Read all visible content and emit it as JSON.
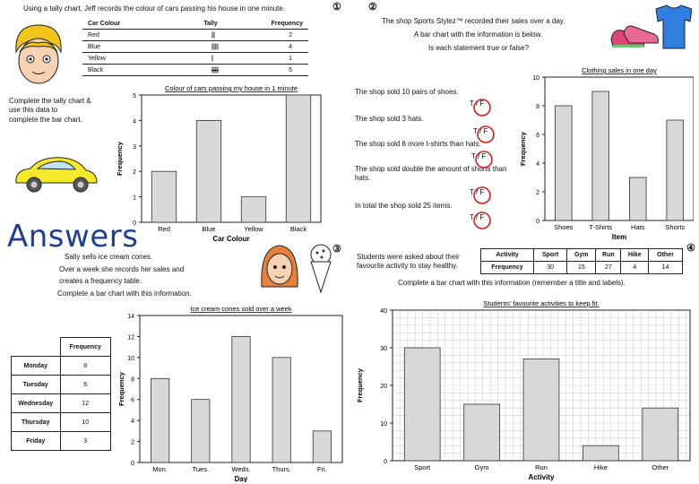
{
  "answers_label": "Answers",
  "q1": {
    "number": "①",
    "intro": "Using a tally chart, Jeff records the colour of cars passing his house in one minute.",
    "instruction_lines": [
      "Complete the tally chart &",
      "use this data to",
      "complete the bar chart."
    ],
    "tally_headers": [
      "Car Colour",
      "Tally",
      "Frequency"
    ],
    "tally_rows": [
      {
        "colour": "Red",
        "tally": "||",
        "freq": "2"
      },
      {
        "colour": "Blue",
        "tally": "||||",
        "freq": "4"
      },
      {
        "colour": "Yellow",
        "tally": "|",
        "freq": "1"
      },
      {
        "colour": "Black",
        "tally": "||||",
        "freq": "5"
      }
    ]
  },
  "q2": {
    "intro_lines": [
      "The shop  Sports Stylez™  recorded their sales over a day.",
      "A bar chart with the information is below.",
      "Is each statement true or false?"
    ],
    "statements": [
      {
        "text": "The shop sold 10 pairs of shoes.",
        "tf": "T / F"
      },
      {
        "text": "The shop sold 3 hats.",
        "tf": "T / F"
      },
      {
        "text": "The shop sold 6 more t-shirts than hats.",
        "tf": "T / F"
      },
      {
        "text": "The shop sold double the amount of shorts than hats.",
        "tf": "T / F"
      },
      {
        "text": "In total the shop sold 25 items.",
        "tf": "T / F"
      }
    ]
  },
  "q3": {
    "number": "③",
    "intro_lines": [
      "Sally sells ice cream cones.",
      "Over a week she records her sales and",
      "creates a frequency table.",
      "Complete a bar chart with this information."
    ],
    "freq_header": "Frequency",
    "rows": [
      {
        "day": "Monday",
        "freq": "8"
      },
      {
        "day": "Tuesday",
        "freq": "6"
      },
      {
        "day": "Wednesday",
        "freq": "12"
      },
      {
        "day": "Thursday",
        "freq": "10"
      },
      {
        "day": "Friday",
        "freq": "3"
      }
    ]
  },
  "q4": {
    "number": "④",
    "intro_lines": [
      "Students were asked about their",
      "favourite activity to stay healthy."
    ],
    "instruction": "Complete a bar chart with this information (remember a title and labels).",
    "table_headers": [
      "Activity",
      "Sport",
      "Gym",
      "Run",
      "Hike",
      "Other"
    ],
    "table_row_label": "Frequency",
    "table_values": [
      "30",
      "15",
      "27",
      "4",
      "14"
    ]
  },
  "chart_data": [
    {
      "type": "bar",
      "title": "Colour of cars passing my house in 1 minute",
      "xlabel": "Car Colour",
      "ylabel": "Frequency",
      "categories": [
        "Red",
        "Blue",
        "Yellow",
        "Black"
      ],
      "values": [
        2,
        4,
        1,
        5
      ],
      "ylim": [
        0,
        5
      ],
      "yticks": [
        0,
        1,
        2,
        3,
        4,
        5
      ],
      "grid": false
    },
    {
      "type": "bar",
      "title": "Clothing sales in one day",
      "xlabel": "Item",
      "ylabel": "Frequency",
      "categories": [
        "Shoes",
        "T-Shirts",
        "Hats",
        "Shorts"
      ],
      "values": [
        8,
        9,
        3,
        7
      ],
      "ylim": [
        0,
        10
      ],
      "yticks": [
        0,
        2,
        4,
        6,
        8,
        10
      ],
      "grid": false
    },
    {
      "type": "bar",
      "title": "Ice cream cones sold over a week",
      "xlabel": "Day",
      "ylabel": "Frequency",
      "categories": [
        "Mon.",
        "Tues.",
        "Weds.",
        "Thurs.",
        "Fri."
      ],
      "values": [
        8,
        6,
        12,
        10,
        3
      ],
      "ylim": [
        0,
        14
      ],
      "yticks": [
        0,
        2,
        4,
        6,
        8,
        10,
        12,
        14
      ],
      "grid": false
    },
    {
      "type": "bar",
      "title": "Students' favourite activities to keep fit.",
      "xlabel": "Activity",
      "ylabel": "Frequency",
      "categories": [
        "Sport",
        "Gym",
        "Run",
        "Hike",
        "Other"
      ],
      "values": [
        30,
        15,
        27,
        4,
        14
      ],
      "ylim": [
        0,
        40
      ],
      "yticks": [
        0,
        10,
        20,
        30,
        40
      ],
      "grid": true
    }
  ],
  "colors": {
    "bar_fill": "#d8d8d8",
    "bar_stroke": "#333333",
    "circle": "#d42020",
    "answers": "#1f3f8f",
    "car": "#f5ea2a",
    "shirt": "#2f7fe0",
    "shoe": "#e0457a",
    "hair": "#f0c419"
  },
  "icons": [
    "boy-face-icon",
    "yellow-car-icon",
    "tshirt-icon",
    "trainers-icon",
    "girl-face-icon",
    "ice-cream-icon"
  ]
}
